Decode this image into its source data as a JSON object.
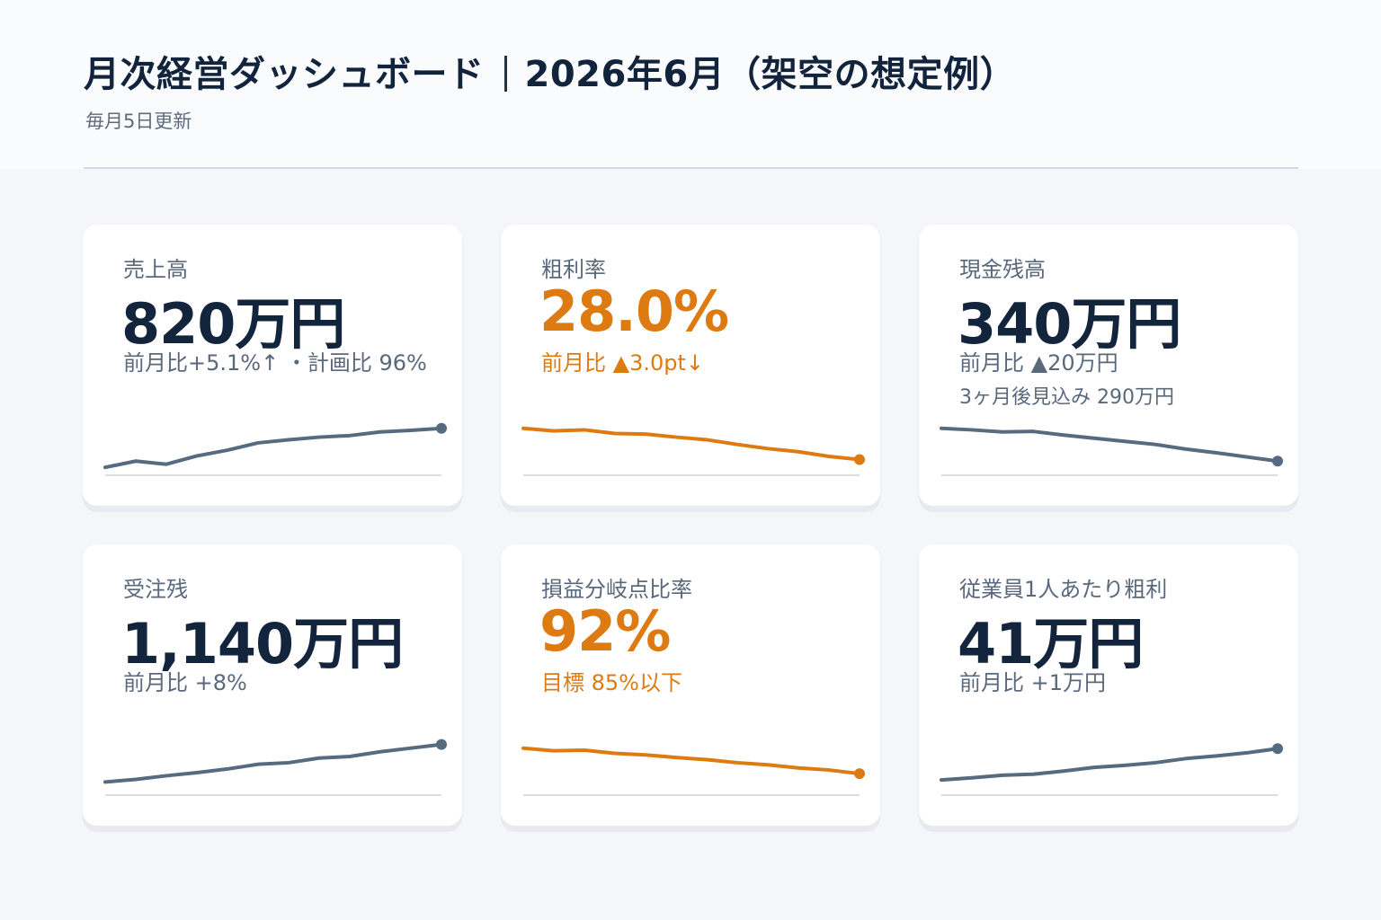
{
  "header": {
    "title_main": "月次経営ダッシュボード",
    "title_period": "2026年6月（架空の想定例）",
    "subtitle": "毎月5日更新"
  },
  "colors": {
    "navy": "#13243d",
    "slate_line": "#566a80",
    "orange": "#dd7a12",
    "baseline": "#cdd3dc"
  },
  "cards": [
    {
      "label": "売上高",
      "value": "820万円",
      "sub": "前月比+5.1%↑ ・計画比 96%",
      "sub2": "",
      "accent": "navy",
      "trend": [
        10,
        22,
        16,
        32,
        43,
        57,
        63,
        68,
        71,
        78,
        81,
        85
      ]
    },
    {
      "label": "粗利率",
      "value": "28.0%",
      "sub": "前月比 ▲3.0pt↓",
      "sub2": "",
      "accent": "orange",
      "trend": [
        85,
        80,
        82,
        75,
        74,
        68,
        63,
        54,
        46,
        40,
        31,
        25
      ]
    },
    {
      "label": "現金残高",
      "value": "340万円",
      "sub": "前月比 ▲20万円",
      "sub2": "3ヶ月後見込み 290万円",
      "accent": "navy",
      "trend": [
        85,
        82,
        78,
        79,
        72,
        66,
        60,
        54,
        45,
        38,
        30,
        22
      ]
    },
    {
      "label": "受注残",
      "value": "1,140万円",
      "sub": "前月比 +8%",
      "sub2": "",
      "accent": "navy",
      "trend": [
        20,
        25,
        32,
        38,
        45,
        54,
        57,
        66,
        69,
        78,
        85,
        92
      ]
    },
    {
      "label": "損益分岐点比率",
      "value": "92%",
      "sub": "目標 85%以下",
      "sub2": "",
      "accent": "orange",
      "trend": [
        85,
        80,
        81,
        75,
        72,
        67,
        63,
        57,
        53,
        47,
        43,
        36
      ]
    },
    {
      "label": "従業員1人あたり粗利",
      "value": "41万円",
      "sub": "前月比 +1万円",
      "sub2": "",
      "accent": "navy",
      "trend": [
        24,
        28,
        33,
        35,
        41,
        48,
        52,
        57,
        65,
        70,
        76,
        84
      ]
    }
  ]
}
